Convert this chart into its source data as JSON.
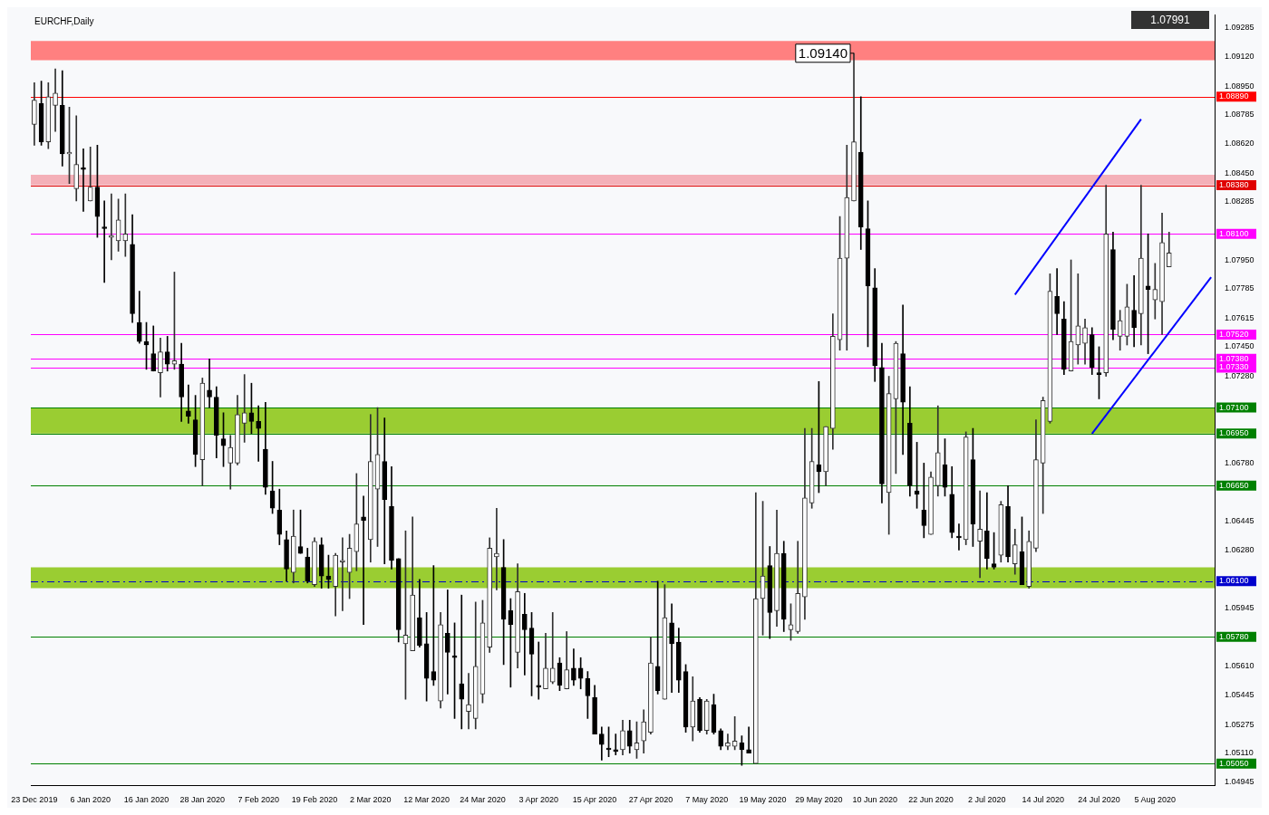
{
  "chart_data": {
    "type": "candlestick",
    "title": "EURCHF,Daily",
    "categories": [
      "23 Dec 2019",
      null,
      null,
      null,
      null,
      null,
      null,
      null,
      "6 Jan 2020",
      null,
      null,
      null,
      null,
      null,
      null,
      null,
      "16 Jan 2020",
      null,
      null,
      null,
      null,
      null,
      null,
      null,
      "28 Jan 2020",
      null,
      null,
      null,
      null,
      null,
      null,
      null,
      "7 Feb 2020",
      null,
      null,
      null,
      null,
      null,
      null,
      null,
      "19 Feb 2020",
      null,
      null,
      null,
      null,
      null,
      null,
      null,
      "2 Mar 2020",
      null,
      null,
      null,
      null,
      null,
      null,
      null,
      "12 Mar 2020",
      null,
      null,
      null,
      null,
      null,
      null,
      null,
      "24 Mar 2020",
      null,
      null,
      null,
      null,
      null,
      null,
      null,
      "3 Apr 2020",
      null,
      null,
      null,
      null,
      null,
      null,
      null,
      "15 Apr 2020",
      null,
      null,
      null,
      null,
      null,
      null,
      null,
      "27 Apr 2020",
      null,
      null,
      null,
      null,
      null,
      null,
      null,
      "7 May 2020",
      null,
      null,
      null,
      null,
      null,
      null,
      null,
      "19 May 2020",
      null,
      null,
      null,
      null,
      null,
      null,
      null,
      "29 May 2020",
      null,
      null,
      null,
      null,
      null,
      null,
      null,
      "10 Jun 2020",
      null,
      null,
      null,
      null,
      null,
      null,
      null,
      "22 Jun 2020",
      null,
      null,
      null,
      null,
      null,
      null,
      null,
      "2 Jul 2020",
      null,
      null,
      null,
      null,
      null,
      null,
      null,
      "14 Jul 2020",
      null,
      null,
      null,
      null,
      null,
      null,
      null,
      "24 Jul 2020",
      null,
      null,
      null,
      null,
      null,
      null,
      null,
      "5 Aug 2020",
      null,
      null,
      null,
      null,
      null,
      null,
      null,
      null
    ],
    "ohlc": [
      [
        1.0873,
        1.0897,
        1.0861,
        1.0887
      ],
      [
        1.0885,
        1.0898,
        1.0861,
        1.0863
      ],
      [
        1.0863,
        1.0897,
        1.0859,
        1.0889
      ],
      [
        1.0884,
        1.0905,
        1.0869,
        1.0891
      ],
      [
        1.0884,
        1.0904,
        1.0849,
        1.0856
      ],
      [
        1.0856,
        1.0883,
        1.0839,
        1.0857
      ],
      [
        1.0836,
        1.0878,
        1.0829,
        1.085
      ],
      [
        1.0848,
        1.0859,
        1.0823,
        1.0847
      ],
      [
        1.0829,
        1.086,
        1.0829,
        1.0837
      ],
      [
        1.0837,
        1.0861,
        1.0808,
        1.082
      ],
      [
        1.0814,
        1.0829,
        1.0782,
        1.0813
      ],
      [
        1.0808,
        1.0833,
        1.0795,
        1.0809
      ],
      [
        1.0806,
        1.083,
        1.08,
        1.0818
      ],
      [
        1.0806,
        1.0833,
        1.0797,
        1.081
      ],
      [
        1.0804,
        1.0821,
        1.0759,
        1.0764
      ],
      [
        1.0759,
        1.0777,
        1.0747,
        1.0748
      ],
      [
        1.0748,
        1.0759,
        1.0732,
        1.0746
      ],
      [
        1.0741,
        1.0757,
        1.0731,
        1.0731
      ],
      [
        1.073,
        1.075,
        1.0716,
        1.0742
      ],
      [
        1.0742,
        1.0751,
        1.0731,
        1.0735
      ],
      [
        1.0735,
        1.0788,
        1.0732,
        1.0737
      ],
      [
        1.0735,
        1.0747,
        1.0702,
        1.0716
      ],
      [
        1.0708,
        1.0723,
        1.0701,
        1.0705
      ],
      [
        1.0703,
        1.0717,
        1.0676,
        1.0683
      ],
      [
        1.068,
        1.0727,
        1.0665,
        1.0724
      ],
      [
        1.072,
        1.0738,
        1.071,
        1.0716
      ],
      [
        1.0716,
        1.0722,
        1.0681,
        1.0694
      ],
      [
        1.0692,
        1.0707,
        1.0676,
        1.0688
      ],
      [
        1.0678,
        1.0694,
        1.0663,
        1.0687
      ],
      [
        1.0678,
        1.0717,
        1.0677,
        1.0706
      ],
      [
        1.0701,
        1.0729,
        1.069,
        1.0707
      ],
      [
        1.0707,
        1.0724,
        1.0695,
        1.0702
      ],
      [
        1.0702,
        1.0711,
        1.0679,
        1.0698
      ],
      [
        1.0686,
        1.0713,
        1.066,
        1.0664
      ],
      [
        1.0662,
        1.0679,
        1.0649,
        1.0652
      ],
      [
        1.0651,
        1.0663,
        1.0631,
        1.0637
      ],
      [
        1.0634,
        1.0639,
        1.061,
        1.0617
      ],
      [
        1.0615,
        1.0651,
        1.0609,
        1.0636
      ],
      [
        1.063,
        1.0651,
        1.0626,
        1.0626
      ],
      [
        1.0624,
        1.0629,
        1.0609,
        1.061
      ],
      [
        1.0608,
        1.0635,
        1.0607,
        1.0633
      ],
      [
        1.0631,
        1.0635,
        1.0606,
        1.0613
      ],
      [
        1.0613,
        1.0625,
        1.0606,
        1.0611
      ],
      [
        1.0607,
        1.0626,
        1.059,
        1.0625
      ],
      [
        1.0621,
        1.0635,
        1.0593,
        1.0622
      ],
      [
        1.0615,
        1.0637,
        1.06,
        1.0629
      ],
      [
        1.0627,
        1.0672,
        1.0616,
        1.0643
      ],
      [
        1.0647,
        1.0659,
        1.0585,
        1.0645
      ],
      [
        1.0634,
        1.0706,
        1.0621,
        1.0679
      ],
      [
        1.0663,
        1.071,
        1.063,
        1.0683
      ],
      [
        1.0679,
        1.0704,
        1.062,
        1.0657
      ],
      [
        1.0653,
        1.0676,
        1.0617,
        1.0622
      ],
      [
        1.0623,
        1.0623,
        1.0575,
        1.0582
      ],
      [
        1.0574,
        1.0639,
        1.0542,
        1.0579
      ],
      [
        1.057,
        1.0647,
        1.057,
        1.0602
      ],
      [
        1.0589,
        1.0611,
        1.0572,
        1.0573
      ],
      [
        1.0574,
        1.0592,
        1.0541,
        1.0554
      ],
      [
        1.0558,
        1.0619,
        1.055,
        1.0553
      ],
      [
        1.0541,
        1.0592,
        1.0537,
        1.0585
      ],
      [
        1.058,
        1.0605,
        1.0545,
        1.0569
      ],
      [
        1.0567,
        1.0586,
        1.0531,
        1.0566
      ],
      [
        1.0551,
        1.0602,
        1.0525,
        1.0542
      ],
      [
        1.0535,
        1.0557,
        1.0525,
        1.0539
      ],
      [
        1.0531,
        1.0598,
        1.0525,
        1.0561
      ],
      [
        1.0545,
        1.0599,
        1.054,
        1.0586
      ],
      [
        1.0572,
        1.0635,
        1.0569,
        1.0629
      ],
      [
        1.0624,
        1.0652,
        1.0605,
        1.0626
      ],
      [
        1.0618,
        1.0634,
        1.0562,
        1.0588
      ],
      [
        1.0593,
        1.06,
        1.0549,
        1.0585
      ],
      [
        1.0569,
        1.062,
        1.056,
        1.0604
      ],
      [
        1.0591,
        1.0603,
        1.0556,
        1.0582
      ],
      [
        1.0583,
        1.0592,
        1.0544,
        1.0568
      ],
      [
        1.055,
        1.0575,
        1.0542,
        1.0549
      ],
      [
        1.0548,
        1.058,
        1.0548,
        1.056
      ],
      [
        1.0552,
        1.0592,
        1.0551,
        1.056
      ],
      [
        1.0563,
        1.0566,
        1.0547,
        1.055
      ],
      [
        1.0548,
        1.0581,
        1.0548,
        1.0559
      ],
      [
        1.056,
        1.0571,
        1.055,
        1.0553
      ],
      [
        1.056,
        1.0566,
        1.0548,
        1.0554
      ],
      [
        1.0554,
        1.0558,
        1.0531,
        1.0544
      ],
      [
        1.0543,
        1.055,
        1.0522,
        1.0522
      ],
      [
        1.0522,
        1.0526,
        1.0507,
        1.0516
      ],
      [
        1.0514,
        1.0526,
        1.0509,
        1.0513
      ],
      [
        1.0513,
        1.0522,
        1.051,
        1.0512
      ],
      [
        1.0513,
        1.053,
        1.051,
        1.0524
      ],
      [
        1.0524,
        1.053,
        1.0511,
        1.0515
      ],
      [
        1.0513,
        1.0529,
        1.0508,
        1.0517
      ],
      [
        1.0518,
        1.0536,
        1.0511,
        1.0529
      ],
      [
        1.0523,
        1.0578,
        1.0522,
        1.0563
      ],
      [
        1.0561,
        1.061,
        1.0545,
        1.0547
      ],
      [
        1.0542,
        1.0608,
        1.0542,
        1.0589
      ],
      [
        1.0586,
        1.0597,
        1.0546,
        1.0574
      ],
      [
        1.0575,
        1.0583,
        1.0546,
        1.0553
      ],
      [
        1.0558,
        1.0562,
        1.0523,
        1.0526
      ],
      [
        1.0526,
        1.0555,
        1.0518,
        1.0541
      ],
      [
        1.0542,
        1.0543,
        1.0523,
        1.0524
      ],
      [
        1.0524,
        1.0542,
        1.0522,
        1.0541
      ],
      [
        1.0539,
        1.0545,
        1.0522,
        1.0523
      ],
      [
        1.0524,
        1.0525,
        1.0513,
        1.0515
      ],
      [
        1.0515,
        1.0522,
        1.0513,
        1.0517
      ],
      [
        1.0515,
        1.0532,
        1.0513,
        1.0518
      ],
      [
        1.0517,
        1.0521,
        1.0504,
        1.0513
      ],
      [
        1.0513,
        1.0526,
        1.0511,
        1.0511
      ],
      [
        1.0505,
        1.0661,
        1.0505,
        1.06
      ],
      [
        1.06,
        1.0656,
        1.0579,
        1.0613
      ],
      [
        1.0619,
        1.063,
        1.0577,
        1.0592
      ],
      [
        1.0593,
        1.0651,
        1.0584,
        1.0626
      ],
      [
        1.0626,
        1.0633,
        1.0581,
        1.0588
      ],
      [
        1.0582,
        1.0597,
        1.0576,
        1.0585
      ],
      [
        1.0581,
        1.0633,
        1.058,
        1.0603
      ],
      [
        1.0601,
        1.0698,
        1.0588,
        1.0658
      ],
      [
        1.0655,
        1.0698,
        1.0652,
        1.0679
      ],
      [
        1.0677,
        1.0725,
        1.0661,
        1.0673
      ],
      [
        1.0673,
        1.0699,
        1.0665,
        1.0699
      ],
      [
        1.0698,
        1.0764,
        1.0686,
        1.0751
      ],
      [
        1.0749,
        1.082,
        1.0743,
        1.0796
      ],
      [
        1.0796,
        1.0861,
        1.0743,
        1.0831
      ],
      [
        1.0829,
        1.0914,
        1.0829,
        1.0863
      ],
      [
        1.0857,
        1.0889,
        1.0801,
        1.0814
      ],
      [
        1.0813,
        1.0829,
        1.0745,
        1.078
      ],
      [
        1.0779,
        1.079,
        1.0725,
        1.0734
      ],
      [
        1.0733,
        1.0747,
        1.0655,
        1.0666
      ],
      [
        1.0661,
        1.0728,
        1.0637,
        1.0718
      ],
      [
        1.0715,
        1.0748,
        1.0672,
        1.0747
      ],
      [
        1.0741,
        1.0769,
        1.0683,
        1.0713
      ],
      [
        1.0701,
        1.0722,
        1.0659,
        1.0665
      ],
      [
        1.0662,
        1.069,
        1.0652,
        1.066
      ],
      [
        1.0651,
        1.0678,
        1.0635,
        1.0642
      ],
      [
        1.0637,
        1.0673,
        1.0637,
        1.067
      ],
      [
        1.0665,
        1.0711,
        1.0659,
        1.0684
      ],
      [
        1.0677,
        1.0692,
        1.0659,
        1.0664
      ],
      [
        1.066,
        1.0676,
        1.0635,
        1.0638
      ],
      [
        1.0636,
        1.0643,
        1.0628,
        1.0635
      ],
      [
        1.0634,
        1.0696,
        1.0631,
        1.0693
      ],
      [
        1.068,
        1.0698,
        1.063,
        1.0643
      ],
      [
        1.0633,
        1.0662,
        1.0612,
        1.064
      ],
      [
        1.0639,
        1.0661,
        1.0617,
        1.0623
      ],
      [
        1.062,
        1.0638,
        1.0617,
        1.0618
      ],
      [
        1.0625,
        1.0656,
        1.0621,
        1.0654
      ],
      [
        1.0653,
        1.0665,
        1.0621,
        1.0624
      ],
      [
        1.062,
        1.064,
        1.0614,
        1.0631
      ],
      [
        1.0627,
        1.0647,
        1.0608,
        1.0608
      ],
      [
        1.0607,
        1.0639,
        1.0606,
        1.0633
      ],
      [
        1.0629,
        1.0703,
        1.0627,
        1.068
      ],
      [
        1.0678,
        1.0716,
        1.0649,
        1.0714
      ],
      [
        1.0702,
        1.0787,
        1.0701,
        1.0777
      ],
      [
        1.0774,
        1.079,
        1.0752,
        1.0764
      ],
      [
        1.0761,
        1.0771,
        1.0729,
        1.0732
      ],
      [
        1.0731,
        1.0795,
        1.0731,
        1.0748
      ],
      [
        1.0746,
        1.0787,
        1.0735,
        1.0757
      ],
      [
        1.0747,
        1.0761,
        1.0735,
        1.0756
      ],
      [
        1.0752,
        1.0756,
        1.0729,
        1.0733
      ],
      [
        1.073,
        1.0745,
        1.0715,
        1.0729
      ],
      [
        1.073,
        1.0838,
        1.0728,
        1.081
      ],
      [
        1.0801,
        1.0811,
        1.0749,
        1.0755
      ],
      [
        1.0751,
        1.0766,
        1.0743,
        1.076
      ],
      [
        1.0751,
        1.0781,
        1.0746,
        1.0768
      ],
      [
        1.0766,
        1.0786,
        1.0745,
        1.0756
      ],
      [
        1.0764,
        1.0838,
        1.0746,
        1.0796
      ],
      [
        1.078,
        1.081,
        1.0741,
        1.0778
      ],
      [
        1.0772,
        1.0793,
        1.0761,
        1.0778
      ],
      [
        1.0771,
        1.0822,
        1.0752,
        1.0805
      ],
      [
        1.0791,
        1.0811,
        1.0791,
        1.0799
      ],
      null,
      null,
      null,
      null,
      null,
      null
    ],
    "series": [
      {
        "type": "line",
        "color": "#0000ff",
        "values": [
          null,
          null,
          null,
          null,
          null,
          null,
          null,
          null,
          null,
          null,
          null,
          null,
          null,
          null,
          null,
          null,
          null,
          null,
          null,
          null,
          null,
          null,
          null,
          null,
          null,
          null,
          null,
          null,
          null,
          null,
          null,
          null,
          null,
          null,
          null,
          null,
          null,
          null,
          null,
          null,
          null,
          null,
          null,
          null,
          null,
          null,
          null,
          null,
          null,
          null,
          null,
          null,
          null,
          null,
          null,
          null,
          null,
          null,
          null,
          null,
          null,
          null,
          null,
          null,
          null,
          null,
          null,
          null,
          null,
          null,
          null,
          null,
          null,
          null,
          null,
          null,
          null,
          null,
          null,
          null,
          null,
          null,
          null,
          null,
          null,
          null,
          null,
          null,
          null,
          null,
          null,
          null,
          null,
          null,
          null,
          null,
          null,
          null,
          null,
          null,
          null,
          null,
          null,
          null,
          null,
          null,
          null,
          null,
          null,
          null,
          null,
          null,
          null,
          null,
          null,
          null,
          null,
          null,
          null,
          null,
          null,
          null,
          null,
          null,
          null,
          null,
          null,
          null,
          null,
          null,
          null,
          null,
          null,
          null,
          null,
          null,
          null,
          null,
          null,
          null,
          1.0775,
          null,
          null,
          null,
          null,
          null,
          null,
          null,
          null,
          null,
          null,
          null,
          null,
          null,
          null,
          null,
          null,
          null,
          1.0876,
          null,
          null,
          null,
          null,
          null,
          null,
          null,
          null,
          null,
          null
        ]
      },
      {
        "type": "line",
        "color": "#0000ff",
        "values": [
          null,
          null,
          null,
          null,
          null,
          null,
          null,
          null,
          null,
          null,
          null,
          null,
          null,
          null,
          null,
          null,
          null,
          null,
          null,
          null,
          null,
          null,
          null,
          null,
          null,
          null,
          null,
          null,
          null,
          null,
          null,
          null,
          null,
          null,
          null,
          null,
          null,
          null,
          null,
          null,
          null,
          null,
          null,
          null,
          null,
          null,
          null,
          null,
          null,
          null,
          null,
          null,
          null,
          null,
          null,
          null,
          null,
          null,
          null,
          null,
          null,
          null,
          null,
          null,
          null,
          null,
          null,
          null,
          null,
          null,
          null,
          null,
          null,
          null,
          null,
          null,
          null,
          null,
          null,
          null,
          null,
          null,
          null,
          null,
          null,
          null,
          null,
          null,
          null,
          null,
          null,
          null,
          null,
          null,
          null,
          null,
          null,
          null,
          null,
          null,
          null,
          null,
          null,
          null,
          null,
          null,
          null,
          null,
          null,
          null,
          null,
          null,
          null,
          null,
          null,
          null,
          null,
          null,
          null,
          null,
          null,
          null,
          null,
          null,
          null,
          null,
          null,
          null,
          null,
          null,
          null,
          null,
          null,
          null,
          null,
          null,
          null,
          null,
          null,
          null,
          null,
          null,
          null,
          null,
          null,
          null,
          null,
          null,
          null,
          null,
          null,
          1.0695,
          null,
          null,
          null,
          null,
          null,
          null,
          null,
          null,
          null,
          null,
          null,
          null,
          null,
          null,
          null,
          null,
          1.0785
        ]
      }
    ],
    "ylim": [
      1.04925,
      1.09361
    ],
    "yticks": [
      1.09285,
      {
        "value": 1.0912,
        "label": "1.09120"
      },
      {
        "value": 1.0895,
        "label": "1.08950"
      },
      1.08785,
      {
        "value": 1.0862,
        "label": "1.08620"
      },
      {
        "value": 1.0845,
        "label": "1.08450"
      },
      1.08285,
      {
        "value": 1.0795,
        "label": "1.07950"
      },
      1.07785,
      1.07615,
      {
        "value": 1.0745,
        "label": "1.07450"
      },
      {
        "value": 1.0728,
        "label": "1.07280"
      },
      {
        "value": 1.0678,
        "label": "1.06780"
      },
      1.06445,
      {
        "value": 1.0628,
        "label": "1.06280"
      },
      1.05945,
      {
        "value": 1.0561,
        "label": "1.05610"
      },
      1.05445,
      1.05275,
      {
        "value": 1.0511,
        "label": "1.05110"
      },
      1.04945
    ],
    "ref_lines": [
      {
        "axis": "y",
        "value": 1.0889,
        "label": "1.08890",
        "color": "#ff0000"
      },
      {
        "axis": "y",
        "value": 1.0838,
        "label": "1.08380",
        "color": "#e00000"
      },
      {
        "axis": "y",
        "value": 1.081,
        "label": "1.08100",
        "color": "#ff00ff"
      },
      {
        "axis": "y",
        "value": 1.0752,
        "label": "1.07520",
        "color": "#ff00ff"
      },
      {
        "axis": "y",
        "value": 1.0738,
        "label": "1.07380",
        "color": "#ff00ff"
      },
      {
        "axis": "y",
        "value": 1.0733,
        "label": "1.07330",
        "color": "#ff00ff"
      },
      {
        "axis": "y",
        "value": 1.071,
        "label": "1.07100",
        "color": "#008000"
      },
      {
        "axis": "y",
        "value": 1.0695,
        "label": "1.06950",
        "color": "#008000"
      },
      {
        "axis": "y",
        "value": 1.0665,
        "label": "1.06650",
        "color": "#008000"
      },
      {
        "axis": "y",
        "value": 1.061,
        "label": "1.06100",
        "color": "#0000cd",
        "line_style": "dashed"
      },
      {
        "axis": "y",
        "value": 1.0578,
        "label": "1.05780",
        "color": "#008000"
      },
      {
        "axis": "y",
        "value": 1.0505,
        "label": "1.05050",
        "color": "#008000"
      }
    ],
    "bands": [
      {
        "axis": "y",
        "from": 1.091,
        "to": 1.0921,
        "color": "#ff8080"
      },
      {
        "axis": "y",
        "from": 1.0838,
        "to": 1.0844,
        "color": "#f4b0b8"
      },
      {
        "axis": "y",
        "from": 1.0695,
        "to": 1.071,
        "color": "#9acd32"
      },
      {
        "axis": "y",
        "from": 1.0606,
        "to": 1.0618,
        "color": "#9acd32"
      }
    ],
    "annotations": [
      "1.09140",
      "1.07991"
    ]
  }
}
